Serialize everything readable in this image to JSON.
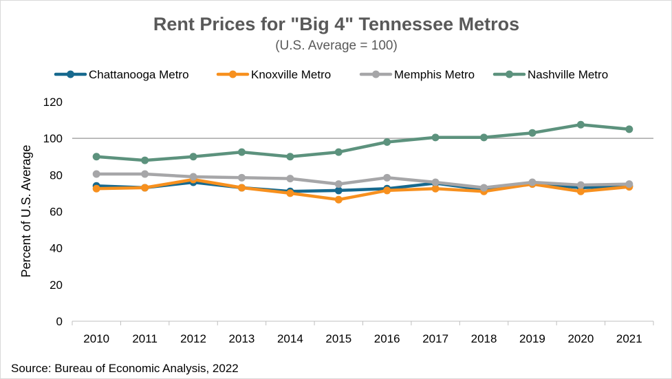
{
  "chart_data": {
    "type": "line",
    "title": "Rent Prices for \"Big 4\" Tennessee Metros",
    "subtitle": "(U.S. Average = 100)",
    "ylabel": "Percent of U.S. Average",
    "xlabel": "",
    "categories": [
      "2010",
      "2011",
      "2012",
      "2013",
      "2014",
      "2015",
      "2016",
      "2017",
      "2018",
      "2019",
      "2020",
      "2021"
    ],
    "ylim": [
      0,
      120
    ],
    "yticks": [
      0,
      20,
      40,
      60,
      80,
      100,
      120
    ],
    "reference_line": 100,
    "grid": false,
    "legend_position": "top",
    "series": [
      {
        "name": "Chattanooga Metro",
        "color": "#17698e",
        "values": [
          74,
          73,
          76,
          73,
          71,
          71.5,
          72.5,
          75.5,
          72,
          75.5,
          73,
          74
        ]
      },
      {
        "name": "Knoxville Metro",
        "color": "#f7901e",
        "values": [
          72.5,
          73,
          77.5,
          73,
          70,
          66.5,
          71.5,
          72.5,
          71,
          75,
          71,
          73.5
        ]
      },
      {
        "name": "Memphis Metro",
        "color": "#a6a6a8",
        "values": [
          80.5,
          80.5,
          79,
          78.5,
          78,
          75,
          78.5,
          76,
          73,
          76,
          74.5,
          75
        ]
      },
      {
        "name": "Nashville Metro",
        "color": "#5c927d",
        "values": [
          90,
          88,
          90,
          92.5,
          90,
          92.5,
          98,
          100.5,
          100.5,
          103,
          107.5,
          105
        ]
      }
    ]
  },
  "source": "Source: Bureau of Economic Analysis, 2022"
}
